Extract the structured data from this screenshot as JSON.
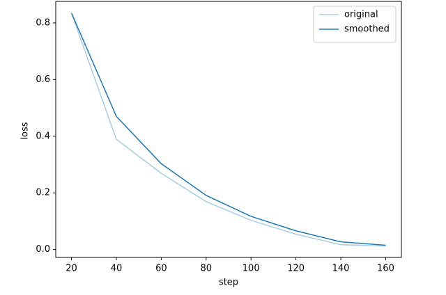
{
  "chart_data": {
    "type": "line",
    "x_label": "step",
    "y_label": "loss",
    "x": [
      20,
      40,
      60,
      80,
      100,
      120,
      140,
      160
    ],
    "series": [
      {
        "name": "original",
        "color": "#a6cee3",
        "values": [
          0.835,
          0.389,
          0.269,
          0.169,
          0.103,
          0.054,
          0.017,
          0.012
        ]
      },
      {
        "name": "smoothed",
        "color": "#1f78b4",
        "values": [
          0.835,
          0.47,
          0.303,
          0.191,
          0.117,
          0.066,
          0.027,
          0.015
        ]
      }
    ],
    "xlim": [
      13,
      167
    ],
    "ylim": [
      -0.028,
      0.876
    ],
    "xticks": [
      20,
      40,
      60,
      80,
      100,
      120,
      140,
      160
    ],
    "yticks": [
      {
        "value": 0,
        "label": "0.0"
      },
      {
        "value": 0.2,
        "label": "0.2"
      },
      {
        "value": 0.4,
        "label": "0.4"
      },
      {
        "value": 0.6,
        "label": "0.6"
      },
      {
        "value": 0.8,
        "label": "0.8"
      }
    ],
    "grid": false,
    "legend": "upper right"
  }
}
